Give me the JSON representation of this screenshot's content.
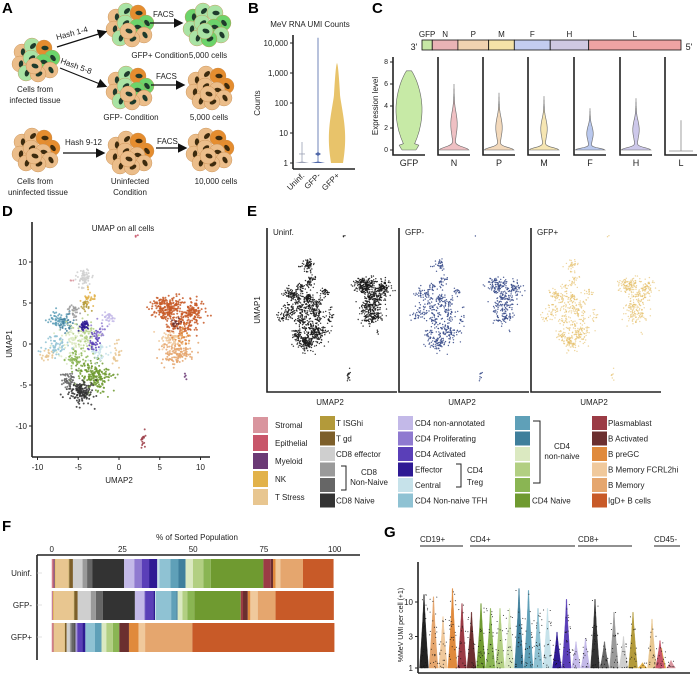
{
  "panel_labels": {
    "a": "A",
    "b": "B",
    "c": "C",
    "d": "D",
    "e": "E",
    "f": "F",
    "g": "G"
  },
  "panel_a": {
    "hash1": "Hash 1-4",
    "hash2": "Hash 5-8",
    "hash3": "Hash 9-12",
    "facs": "FACS",
    "infected_line1": "Cells from",
    "infected_line2": "infected tissue",
    "uninfected_line1": "Cells from",
    "uninfected_line2": "uninfected tissue",
    "gfp_pos_condition": "GFP+ Condition",
    "gfp_neg_condition": "GFP- Condition",
    "uninf_condition_line1": "Uninfected",
    "uninf_condition_line2": "Condition",
    "cells_5000": "5,000 cells",
    "cells_10000": "10,000 cells",
    "colors": {
      "tan": "#ebbd8a",
      "orange": "#e58d2f",
      "light_green": "#a9e3a4",
      "green": "#6cd46b",
      "nucleus_dark": "#1e3b2c",
      "nucleus_brown": "#3d2b0e"
    }
  },
  "chart_data": [
    {
      "id": "B",
      "type": "violin",
      "title": "MeV RNA UMI Counts",
      "ylabel": "Counts",
      "yscale": "log",
      "yticks": [
        "1",
        "10",
        "100",
        "1,000",
        "10,000"
      ],
      "ytick_values": [
        1,
        10,
        100,
        1000,
        10000
      ],
      "categories": [
        "Uninf.",
        "GFP-",
        "GFP+"
      ],
      "max_values": [
        5,
        15000,
        2200
      ],
      "colors": [
        "#9aa0b4",
        "#4f67a8",
        "#e8c36a"
      ]
    },
    {
      "id": "C",
      "type": "violin",
      "genome": {
        "prime3": "3'",
        "prime5": "5'",
        "genes": [
          {
            "name": "GFP",
            "color": "#c7e8a5",
            "len": 4
          },
          {
            "name": "N",
            "color": "#e9b3b5",
            "len": 10
          },
          {
            "name": "P",
            "color": "#f1d3b0",
            "len": 12
          },
          {
            "name": "M",
            "color": "#f4e2a8",
            "len": 10
          },
          {
            "name": "F",
            "color": "#c3cdf0",
            "len": 14
          },
          {
            "name": "H",
            "color": "#cfc8e2",
            "len": 15
          },
          {
            "name": "L",
            "color": "#eea3a3",
            "len": 36
          }
        ]
      },
      "ylabel": "Expression level",
      "yticks": [
        "0",
        "2",
        "4",
        "6",
        "8"
      ],
      "ylim": [
        0,
        8
      ],
      "categories": [
        "GFP",
        "N",
        "P",
        "M",
        "F",
        "H",
        "L"
      ],
      "max_values": [
        7.2,
        6.0,
        5.2,
        4.9,
        3.8,
        4.7,
        2.7
      ],
      "colors": [
        "#c7eaa6",
        "#efc0c3",
        "#f3d9bb",
        "#f6e6b3",
        "#b9c8ee",
        "#cdc8ea",
        "#cccccc"
      ]
    },
    {
      "id": "D",
      "type": "scatter",
      "title": "UMAP on all cells",
      "xlabel": "UMAP2",
      "ylabel": "UMAP1",
      "xticks": [
        "-10",
        "-5",
        "0",
        "5",
        "10"
      ],
      "xtick_values": [
        -10,
        -5,
        0,
        5,
        10
      ],
      "yticks": [
        "10",
        "5",
        "0",
        "-5",
        "-10"
      ],
      "ytick_values": [
        10,
        5,
        0,
        -5,
        -10
      ],
      "clusters": [
        {
          "cell_type": "CD8 effector",
          "center": [
            -4.3,
            7.8
          ],
          "spread": [
            0.5,
            0.6
          ],
          "n": 60
        },
        {
          "cell_type": "NK",
          "center": [
            -3.8,
            5.5
          ],
          "spread": [
            0.4,
            0.6
          ],
          "n": 30
        },
        {
          "cell_type": "T ISGhi",
          "center": [
            -4.2,
            4.8
          ],
          "spread": [
            0.3,
            0.4
          ],
          "n": 20
        },
        {
          "cell_type": "T Stress",
          "center": [
            -8.8,
            -1.3
          ],
          "spread": [
            0.5,
            0.4
          ],
          "n": 25
        },
        {
          "cell_type": "T Stress",
          "center": [
            -0.3,
            -1.2
          ],
          "spread": [
            0.3,
            0.8
          ],
          "n": 25
        },
        {
          "cell_type": "CD4 Non-naive TFH",
          "center": [
            -7.8,
            -0.2
          ],
          "spread": [
            0.8,
            0.6
          ],
          "n": 60
        },
        {
          "cell_type": "CD4 non-naive 1",
          "center": [
            -7.6,
            3.0
          ],
          "spread": [
            0.6,
            0.5
          ],
          "n": 60
        },
        {
          "cell_type": "CD4 non-naive 2",
          "center": [
            -6.5,
            2.5
          ],
          "spread": [
            0.5,
            0.5
          ],
          "n": 40
        },
        {
          "cell_type": "CD4 non-naive 3",
          "center": [
            -5.5,
            0.5
          ],
          "spread": [
            1.0,
            1.2
          ],
          "n": 90
        },
        {
          "cell_type": "CD4 non-naive 4",
          "center": [
            -4.0,
            1.0
          ],
          "spread": [
            0.8,
            1.0
          ],
          "n": 60
        },
        {
          "cell_type": "CD4 non-naive 5",
          "center": [
            -5.0,
            -2.0
          ],
          "spread": [
            0.8,
            0.8
          ],
          "n": 60
        },
        {
          "cell_type": "CD4 Naive",
          "center": [
            -3.0,
            -4.0
          ],
          "spread": [
            1.0,
            1.0
          ],
          "n": 200
        },
        {
          "cell_type": "CD8 Naive",
          "center": [
            -4.6,
            -5.8
          ],
          "spread": [
            0.8,
            0.7
          ],
          "n": 150
        },
        {
          "cell_type": "CD8 Non-Naive 2",
          "center": [
            -6.3,
            -4.3
          ],
          "spread": [
            0.4,
            0.6
          ],
          "n": 50
        },
        {
          "cell_type": "CD8 Non-Naive 1",
          "center": [
            -5.5,
            4.0
          ],
          "spread": [
            0.4,
            0.6
          ],
          "n": 30
        },
        {
          "cell_type": "CD4 Treg Effector",
          "center": [
            -4.4,
            2.2
          ],
          "spread": [
            0.35,
            0.3
          ],
          "n": 40
        },
        {
          "cell_type": "CD4 Treg Central",
          "center": [
            -2.5,
            -1.0
          ],
          "spread": [
            0.6,
            0.8
          ],
          "n": 40
        },
        {
          "cell_type": "CD4 Activated",
          "center": [
            -3.2,
            0.5
          ],
          "spread": [
            0.4,
            0.8
          ],
          "n": 40
        },
        {
          "cell_type": "CD4 non-annotated",
          "center": [
            -1.3,
            3.2
          ],
          "spread": [
            0.4,
            0.3
          ],
          "n": 30
        },
        {
          "cell_type": "CD4 Proliferating",
          "center": [
            -2.0,
            1.5
          ],
          "spread": [
            0.6,
            0.6
          ],
          "n": 20
        },
        {
          "cell_type": "IgD+ B cells",
          "center": [
            6.0,
            4.5
          ],
          "spread": [
            1.0,
            0.7
          ],
          "n": 220
        },
        {
          "cell_type": "IgD+ B cells",
          "center": [
            9.2,
            3.8
          ],
          "spread": [
            0.6,
            0.8
          ],
          "n": 120
        },
        {
          "cell_type": "IgD+ B cells",
          "center": [
            7.5,
            2.5
          ],
          "spread": [
            0.9,
            0.8
          ],
          "n": 100
        },
        {
          "cell_type": "B Memory",
          "center": [
            7.0,
            -1.0
          ],
          "spread": [
            1.0,
            0.8
          ],
          "n": 150
        },
        {
          "cell_type": "B Memory FCRL2hi",
          "center": [
            6.5,
            0.5
          ],
          "spread": [
            0.8,
            0.6
          ],
          "n": 60
        },
        {
          "cell_type": "B preGC",
          "center": [
            7.5,
            1.0
          ],
          "spread": [
            0.6,
            0.6
          ],
          "n": 30
        },
        {
          "cell_type": "B Activated",
          "center": [
            7.0,
            2.5
          ],
          "spread": [
            0.3,
            0.3
          ],
          "n": 15
        },
        {
          "cell_type": "Plasmablast",
          "center": [
            3.0,
            -11.7
          ],
          "spread": [
            0.2,
            0.5
          ],
          "n": 15
        },
        {
          "cell_type": "Epithelial",
          "center": [
            2.2,
            13.2
          ],
          "spread": [
            0.1,
            0.1
          ],
          "n": 3
        },
        {
          "cell_type": "Stromal",
          "center": [
            -5.8,
            7.7
          ],
          "spread": [
            0.1,
            0.1
          ],
          "n": 3
        },
        {
          "cell_type": "Myeloid",
          "center": [
            8.0,
            -4.0
          ],
          "spread": [
            0.1,
            0.2
          ],
          "n": 4
        }
      ]
    },
    {
      "id": "E",
      "type": "scatter",
      "xlabel": "UMAP2",
      "ylabel": "UMAP1",
      "panels": [
        {
          "name": "Uninf.",
          "color": "#1a1a1a"
        },
        {
          "name": "GFP-",
          "color": "#3c4f8c"
        },
        {
          "name": "GFP+",
          "color": "#e3b95a"
        }
      ]
    },
    {
      "id": "F",
      "type": "bar",
      "orientation": "horizontal",
      "stacked": true,
      "title": "% of Sorted Population",
      "xticks": [
        "0",
        "25",
        "50",
        "75",
        "100"
      ],
      "xtick_values": [
        0,
        25,
        50,
        75,
        100
      ],
      "xlim": [
        0,
        100
      ],
      "categories": [
        "Stromal",
        "Epithelial",
        "Myeloid",
        "NK",
        "T Stress",
        "T ISGhi",
        "T gd",
        "CD8 effector",
        "CD8 Non-Naive 1",
        "CD8 Non-Naive 2",
        "CD8 Naive",
        "CD4 non-annotated",
        "CD4 Proliferating",
        "CD4 Activated",
        "CD4 Treg Effector",
        "CD4 Treg Central",
        "CD4 Non-naive TFH",
        "CD4 non-naive 1",
        "CD4 non-naive 2",
        "CD4 non-naive 3",
        "CD4 non-naive 4",
        "CD4 non-naive 5",
        "CD4 Naive",
        "Plasmablast",
        "B Activated",
        "B preGC",
        "B Memory FCRL2hi",
        "B Memory",
        "IgD+ B cells"
      ],
      "series": [
        {
          "name": "Uninf.",
          "values": [
            0.3,
            0.4,
            0.4,
            0.3,
            4.6,
            0.2,
            1.3,
            3.4,
            1.6,
            1.8,
            11.3,
            3.6,
            2.6,
            2.6,
            2.9,
            0.8,
            3.8,
            2.9,
            2.5,
            2.6,
            3.7,
            2.6,
            18.6,
            2.6,
            0.8,
            0.9,
            1.7,
            8.0,
            10.8
          ]
        },
        {
          "name": "GFP-",
          "values": [
            0.2,
            0.2,
            0.1,
            0.3,
            7.0,
            0.2,
            1.2,
            4.6,
            1.8,
            2.5,
            11.3,
            3.3,
            0.3,
            2.9,
            0.6,
            0.3,
            5.4,
            1.8,
            0.5,
            1.7,
            1.7,
            2.5,
            16.4,
            0.8,
            1.7,
            0.9,
            2.6,
            6.3,
            20.6
          ]
        },
        {
          "name": "GFP+",
          "values": [
            0.3,
            0.3,
            0.1,
            0.1,
            3.8,
            0.1,
            0.6,
            1.1,
            0.5,
            1.1,
            0.4,
            0.3,
            0.4,
            1.7,
            1.1,
            0,
            3.4,
            2.3,
            0,
            1.7,
            2.3,
            2.3,
            0,
            0,
            3.4,
            3.4,
            2.3,
            16.7,
            50.2
          ]
        }
      ]
    },
    {
      "id": "G",
      "type": "violin",
      "yscale": "log",
      "ylabel": "%MeV UMI per cell (+1)",
      "yticks": [
        "1",
        "3",
        "10"
      ],
      "ytick_values": [
        1,
        3,
        10
      ],
      "groups": [
        {
          "name": "CD19+"
        },
        {
          "name": "CD4+"
        },
        {
          "name": "CD8+"
        },
        {
          "name": "CD45-"
        }
      ],
      "violins": [
        {
          "color": "#222222",
          "max": 13
        },
        {
          "color": "#e5a66e",
          "max": 12
        },
        {
          "color": "#f0c99c",
          "max": 6
        },
        {
          "color": "#e08a3c",
          "max": 16
        },
        {
          "color": "#9b3b45",
          "max": 9.5
        },
        {
          "color": "#6b2f2f",
          "max": 7
        },
        {
          "color": "#6f9a30",
          "max": 9.5
        },
        {
          "color": "#8ab553",
          "max": 8
        },
        {
          "color": "#b2cf82",
          "max": 8
        },
        {
          "color": "#dbe9c1",
          "max": 8
        },
        {
          "color": "#3f7f9c",
          "max": 16
        },
        {
          "color": "#5fa0b8",
          "max": 15
        },
        {
          "color": "#8fc2d3",
          "max": 8
        },
        {
          "color": "#c6e2ea",
          "max": 8
        },
        {
          "color": "#2e1a94",
          "max": 3.5
        },
        {
          "color": "#5a3fb8",
          "max": 11
        },
        {
          "color": "#c3b9e8",
          "max": 2.5
        },
        {
          "color": "#c3b9e8",
          "max": 2.8
        },
        {
          "color": "#333333",
          "max": 11
        },
        {
          "color": "#666666",
          "max": 2.5
        },
        {
          "color": "#9a9a9a",
          "max": 7
        },
        {
          "color": "#cfcfcf",
          "max": 3
        },
        {
          "color": "#b39a3a",
          "max": 7
        },
        {
          "color": "#e2b24a",
          "max": 1.2
        },
        {
          "color": "#e8c690",
          "max": 5.5
        },
        {
          "color": "#e2b24a",
          "max": 2
        },
        {
          "color": "#c8566a",
          "max": 2.6
        },
        {
          "color": "#d9959e",
          "max": 1.3
        }
      ]
    }
  ],
  "legend": {
    "col1": [
      {
        "label": "Stromal",
        "color": "#d9959e"
      },
      {
        "label": "Epithelial",
        "color": "#c8566a"
      },
      {
        "label": "Myeloid",
        "color": "#6b3a75"
      },
      {
        "label": "NK",
        "color": "#e2b24a"
      },
      {
        "label": "T Stress",
        "color": "#e8c690"
      }
    ],
    "col2": [
      {
        "label": "T ISGhi",
        "color": "#b39a3a"
      },
      {
        "label": "T gd",
        "color": "#7d5f2a"
      },
      {
        "label": "CD8 effector",
        "color": "#cfcfcf"
      },
      {
        "label": "",
        "color": "#9a9a9a"
      },
      {
        "label": "",
        "color": "#666666"
      },
      {
        "label": "CD8 Naive",
        "color": "#333333"
      }
    ],
    "col3": [
      {
        "label": "CD4 non-annotated",
        "color": "#c3b9e8"
      },
      {
        "label": "CD4 Proliferating",
        "color": "#8f7ad0"
      },
      {
        "label": "CD4 Activated",
        "color": "#5a3fb8"
      },
      {
        "label": "Effector",
        "color": "#2e1a94"
      },
      {
        "label": "Central",
        "color": "#c6e2ea"
      },
      {
        "label": "CD4 Non-naive TFH",
        "color": "#8fc2d3"
      }
    ],
    "col4": [
      {
        "label": "",
        "color": "#5fa0b8"
      },
      {
        "label": "",
        "color": "#3f7f9c"
      },
      {
        "label": "",
        "color": "#dbe9c1"
      },
      {
        "label": "",
        "color": "#b2cf82"
      },
      {
        "label": "",
        "color": "#8ab553"
      },
      {
        "label": "CD4 Naive",
        "color": "#6f9a30"
      }
    ],
    "col5": [
      {
        "label": "Plasmablast",
        "color": "#9b3b45"
      },
      {
        "label": "B Activated",
        "color": "#6b2f2f"
      },
      {
        "label": "B preGC",
        "color": "#e08a3c"
      },
      {
        "label": "B Memory  FCRL2hi",
        "color": "#f0c99c"
      },
      {
        "label": "B Memory",
        "color": "#e5a66e"
      },
      {
        "label": "IgD+ B cells",
        "color": "#c85a28"
      }
    ],
    "groups": {
      "cd8_nn_1": "CD8",
      "cd8_nn_2": "Non-Naive",
      "treg_1": "CD4",
      "treg_2": "Treg",
      "cd4nn_1": "CD4",
      "cd4nn_2": "non-naive"
    }
  }
}
